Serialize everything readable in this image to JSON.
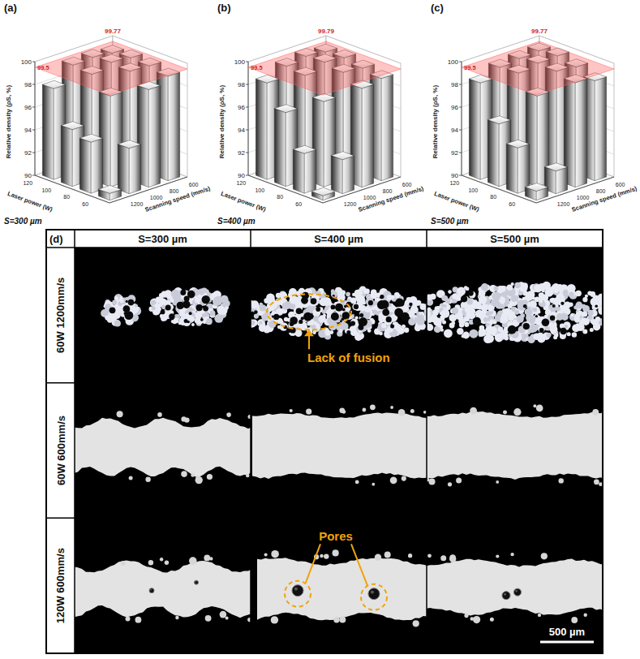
{
  "chart_data": [
    {
      "type": "bar3d",
      "label": "(a)",
      "subtitle": "S=300 µm",
      "x_label": "Laser power (W)",
      "depth_label": "Scanning speed (mm/s)",
      "y_label": "Relative density (ρS, %)",
      "categories": [
        60,
        80,
        100,
        120
      ],
      "depth_categories": [
        600,
        800,
        1000,
        1200
      ],
      "values": [
        [
          99.2,
          98.6,
          94.0,
          90.6
        ],
        [
          99.5,
          99.6,
          98.0,
          94.5
        ],
        [
          99.6,
          99.77,
          99.3,
          95.0
        ],
        [
          99.4,
          99.6,
          99.5,
          98.0
        ]
      ],
      "ylim": [
        90,
        100
      ],
      "yticks": [
        90,
        92,
        94,
        96,
        98,
        100
      ],
      "threshold": 99.5,
      "peak": 99.77,
      "grid": true
    },
    {
      "type": "bar3d",
      "label": "(b)",
      "subtitle": "S=400 µm",
      "x_label": "Laser power (W)",
      "depth_label": "Scanning speed (mm/s)",
      "y_label": "Relative density (ρS, %)",
      "categories": [
        60,
        80,
        100,
        120
      ],
      "depth_categories": [
        600,
        800,
        1000,
        1200
      ],
      "values": [
        [
          99.0,
          98.7,
          93.0,
          90.4
        ],
        [
          99.3,
          99.5,
          97.5,
          93.5
        ],
        [
          99.6,
          99.79,
          99.2,
          96.5
        ],
        [
          99.5,
          99.7,
          99.4,
          98.5
        ]
      ],
      "ylim": [
        90,
        100
      ],
      "yticks": [
        90,
        92,
        94,
        96,
        98,
        100
      ],
      "threshold": 99.5,
      "peak": 99.79,
      "grid": true
    },
    {
      "type": "bar3d",
      "label": "(c)",
      "subtitle": "S=500 µm",
      "x_label": "Laser power (W)",
      "depth_label": "Scanning speed (mm/s)",
      "y_label": "Relative density (ρS, %)",
      "categories": [
        60,
        80,
        100,
        120
      ],
      "depth_categories": [
        600,
        800,
        1000,
        1200
      ],
      "values": [
        [
          98.8,
          99.2,
          92.0,
          90.8
        ],
        [
          99.4,
          99.6,
          98.0,
          94.0
        ],
        [
          99.77,
          99.7,
          99.4,
          95.5
        ],
        [
          99.6,
          99.5,
          99.3,
          98.5
        ]
      ],
      "ylim": [
        90,
        100
      ],
      "yticks": [
        90,
        92,
        94,
        96,
        98,
        100
      ],
      "threshold": 99.5,
      "peak": 99.77,
      "grid": true
    }
  ],
  "micrograph_grid": {
    "label": "(d)",
    "columns": [
      "S=300 µm",
      "S=400 µm",
      "S=500 µm"
    ],
    "rows": [
      "60W 1200mm/s",
      "60W 600mm/s",
      "120W 600mm/s"
    ],
    "annotations": [
      "Lack of fusion",
      "Pores"
    ],
    "scale_bar": "500 µm"
  }
}
